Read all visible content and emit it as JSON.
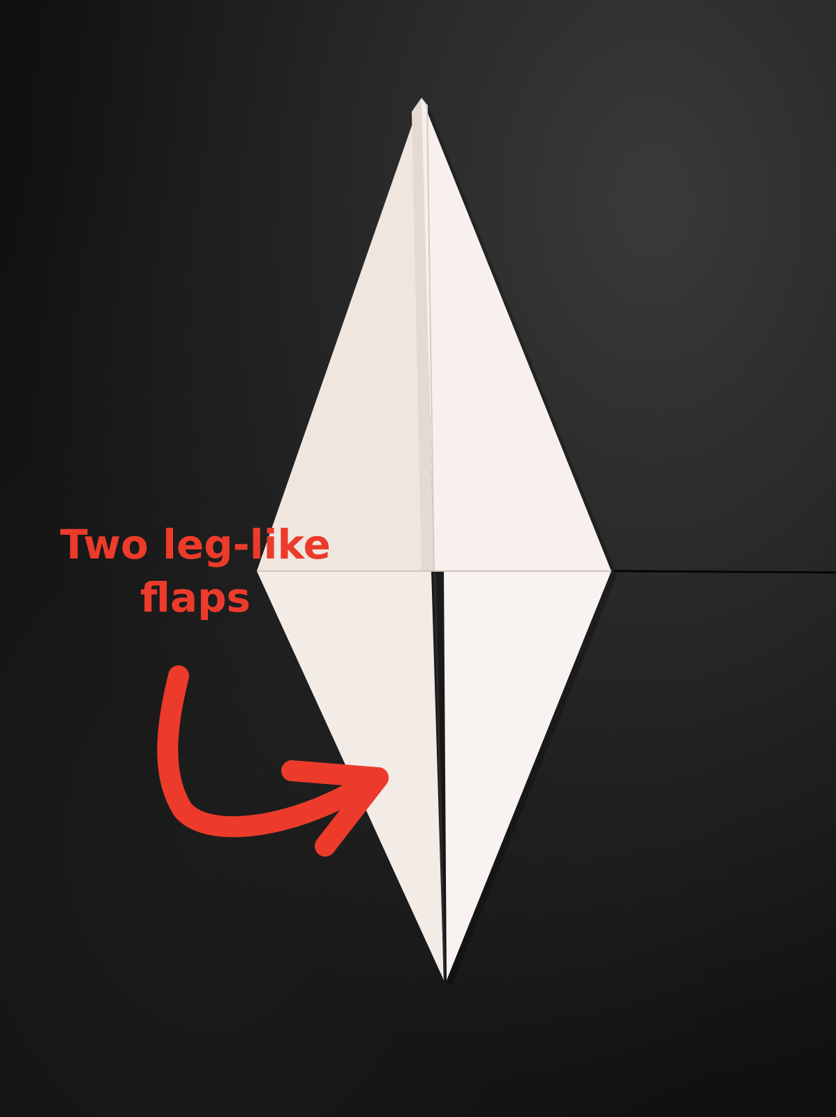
{
  "annotation": {
    "line1": "Two leg-like",
    "line2": "flaps",
    "color": "#ec3b2b"
  },
  "scene": {
    "background_color": "#141414",
    "paper_color": "#f3ece7",
    "subject": "origami-kite-fold",
    "arrow_icon": "curved-arrow-icon"
  }
}
